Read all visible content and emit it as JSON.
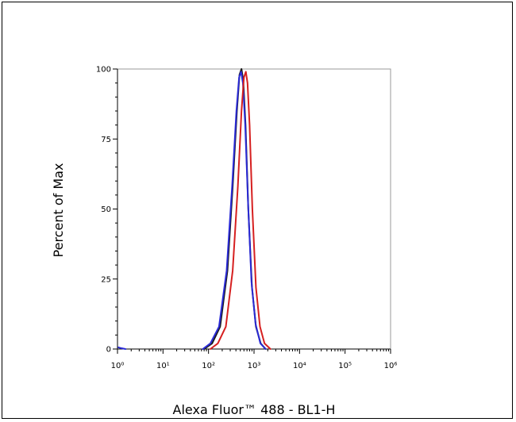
{
  "chart_data": {
    "type": "line",
    "title": "",
    "xlabel": "Alexa Fluor™ 488 - BL1-H",
    "ylabel": "Percent of Max",
    "x_scale": "log",
    "xlim": [
      1,
      1000000
    ],
    "ylim": [
      0,
      100
    ],
    "x_tick_values": [
      1,
      10,
      100,
      1000,
      10000,
      100000,
      1000000
    ],
    "x_tick_labels": [
      "10⁰",
      "10¹",
      "10²",
      "10³",
      "10⁴",
      "10⁵",
      "10⁶"
    ],
    "y_tick_values": [
      0,
      25,
      50,
      75,
      100
    ],
    "y_tick_labels": [
      "0",
      "25",
      "50",
      "75",
      "100"
    ],
    "grid": false,
    "series": [
      {
        "color": "#1a1a1a",
        "x": [
          80,
          120,
          180,
          260,
          340,
          420,
          480,
          530,
          580,
          650,
          750,
          900,
          1100,
          1400,
          1800
        ],
        "y": [
          0,
          2,
          8,
          28,
          58,
          85,
          98,
          100,
          96,
          80,
          50,
          22,
          8,
          2,
          0
        ]
      },
      {
        "color": "#2a2ad6",
        "x": [
          1.05,
          1.2,
          1.5
        ],
        "y": [
          0.6,
          0.3,
          0
        ]
      },
      {
        "color": "#2a2ad6",
        "x": [
          75,
          110,
          170,
          250,
          330,
          410,
          470,
          520,
          570,
          640,
          740,
          880,
          1080,
          1380,
          1800
        ],
        "y": [
          0,
          2,
          8,
          28,
          58,
          85,
          97,
          99,
          95,
          80,
          52,
          24,
          9,
          2,
          0
        ]
      },
      {
        "color": "#d62020",
        "x": [
          110,
          160,
          240,
          340,
          440,
          530,
          600,
          660,
          720,
          800,
          920,
          1100,
          1350,
          1700,
          2300
        ],
        "y": [
          0,
          2,
          8,
          28,
          58,
          85,
          97,
          99,
          95,
          80,
          50,
          22,
          8,
          2,
          0
        ]
      }
    ]
  }
}
